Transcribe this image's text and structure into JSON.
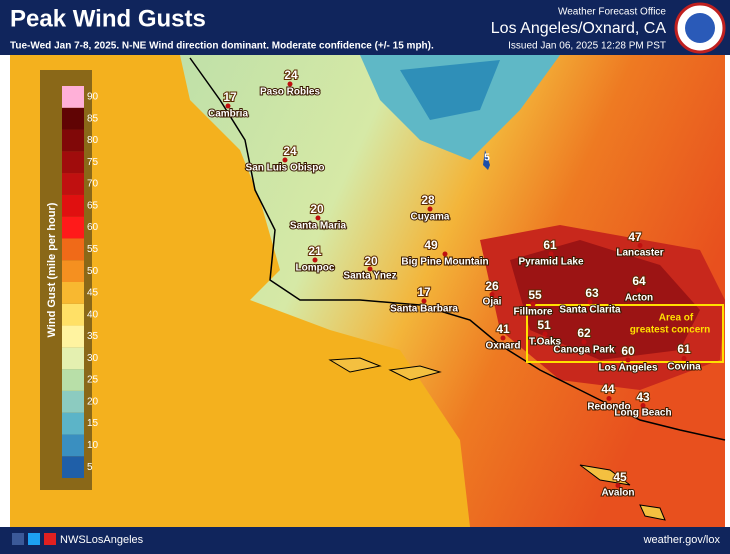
{
  "header": {
    "title": "Peak Wind Gusts",
    "subtitle": "Tue-Wed Jan 7-8, 2025. N-NE Wind direction dominant. Moderate confidence (+/- 15 mph).",
    "office": "Weather Forecast Office",
    "location": "Los Angeles/Oxnard, CA",
    "issued": "Issued Jan 06, 2025 12:28 PM PST"
  },
  "legend": {
    "label": "Wind Gust (mile per hour)",
    "ticks": [
      5,
      10,
      15,
      20,
      25,
      30,
      35,
      40,
      45,
      50,
      55,
      60,
      65,
      70,
      75,
      80,
      85,
      90
    ],
    "colors": [
      "#1f5fa8",
      "#3a8fc0",
      "#5cb4c8",
      "#8ccbc0",
      "#b8dfa8",
      "#e4f0b0",
      "#fff3a0",
      "#ffe066",
      "#f8b830",
      "#f59020",
      "#f06a18",
      "#ff1a1a",
      "#e01010",
      "#c01010",
      "#a00c0c",
      "#800808",
      "#600404",
      "#ffb0d8"
    ]
  },
  "locations": [
    {
      "name": "Paso Robles",
      "value": 24
    },
    {
      "name": "Cambria",
      "value": 17
    },
    {
      "name": "San Luis Obispo",
      "value": 24
    },
    {
      "name": "Santa Maria",
      "value": 20
    },
    {
      "name": "Lompoc",
      "value": 21
    },
    {
      "name": "Santa Ynez",
      "value": 20
    },
    {
      "name": "Cuyama",
      "value": 28
    },
    {
      "name": "Big Pine Mountain",
      "value": 49
    },
    {
      "name": "Santa Barbara",
      "value": 17
    },
    {
      "name": "Ojai",
      "value": 26
    },
    {
      "name": "Oxnard",
      "value": 41
    },
    {
      "name": "Pyramid Lake",
      "value": 61
    },
    {
      "name": "Lancaster",
      "value": 47
    },
    {
      "name": "Fillmore",
      "value": 55
    },
    {
      "name": "Santa Clarita",
      "value": 63
    },
    {
      "name": "Acton",
      "value": 64
    },
    {
      "name": "T.Oaks",
      "value": 51
    },
    {
      "name": "Canoga Park",
      "value": 62
    },
    {
      "name": "Los Angeles",
      "value": 60
    },
    {
      "name": "Covina",
      "value": 61
    },
    {
      "name": "Redondo",
      "value": 44
    },
    {
      "name": "Long Beach",
      "value": 43
    },
    {
      "name": "Avalon",
      "value": 45
    }
  ],
  "annotation": {
    "line1": "Area of",
    "line2": "greatest concern"
  },
  "highway": "5",
  "footer": {
    "social": "NWSLosAngeles",
    "url": "weather.gov/lox"
  }
}
